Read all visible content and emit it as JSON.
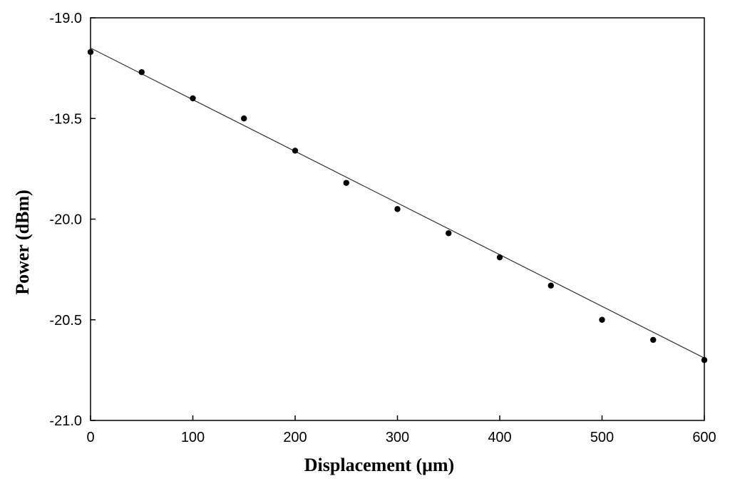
{
  "chart_data": {
    "type": "scatter",
    "xlabel": "Displacement (μm)",
    "ylabel": "Power (dBm)",
    "xlim": [
      0,
      600
    ],
    "ylim": [
      -21.0,
      -19.0
    ],
    "x_ticks": [
      "0",
      "100",
      "200",
      "300",
      "400",
      "500",
      "600"
    ],
    "y_ticks": [
      "-19.0",
      "-19.5",
      "-20.0",
      "-20.5",
      "-21.0"
    ],
    "grid": false,
    "legend": "none",
    "series": [
      {
        "type": "scatter",
        "x": [
          0,
          50,
          100,
          150,
          200,
          250,
          300,
          350,
          400,
          450,
          500,
          550,
          600
        ],
        "y": [
          -19.17,
          -19.27,
          -19.4,
          -19.5,
          -19.66,
          -19.82,
          -19.95,
          -20.07,
          -20.19,
          -20.33,
          -20.5,
          -20.6,
          -20.7
        ]
      },
      {
        "type": "line",
        "x": [
          0,
          600
        ],
        "y": [
          -19.15,
          -20.69
        ]
      }
    ]
  }
}
